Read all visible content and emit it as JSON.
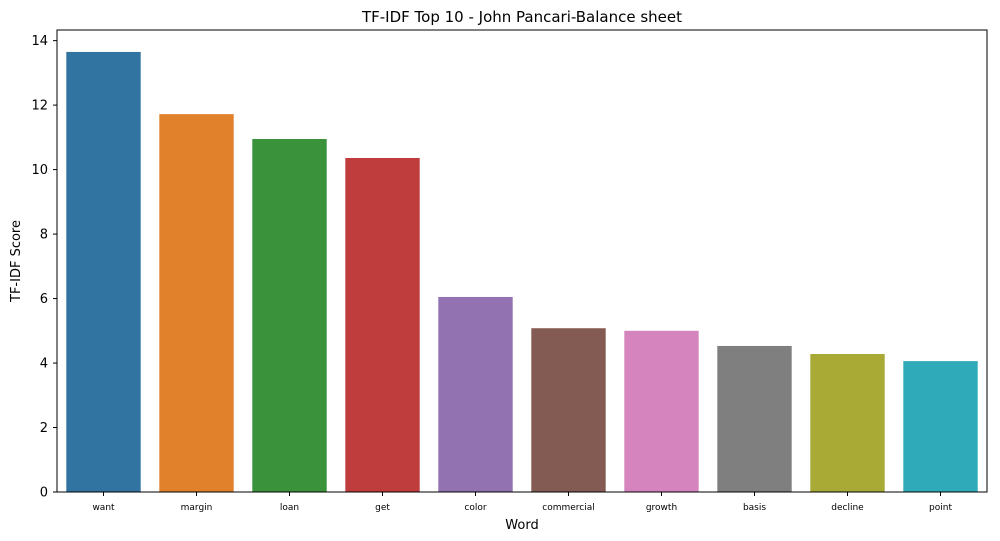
{
  "chart_data": {
    "type": "bar",
    "title": "TF-IDF Top 10 - John Pancari-Balance sheet",
    "xlabel": "Word",
    "ylabel": "TF-IDF Score",
    "categories": [
      "want",
      "margin",
      "loan",
      "get",
      "color",
      "commercial",
      "growth",
      "basis",
      "decline",
      "point"
    ],
    "values": [
      13.65,
      11.72,
      10.95,
      10.36,
      6.05,
      5.08,
      5.0,
      4.53,
      4.28,
      4.06
    ],
    "colors": [
      "#3274a1",
      "#e1812c",
      "#3a923a",
      "#c03d3e",
      "#9372b2",
      "#845b53",
      "#d684bd",
      "#7f7f7f",
      "#a9aa35",
      "#2eaab8"
    ],
    "ylim": [
      0,
      14.33
    ],
    "yticks": [
      0,
      2,
      4,
      6,
      8,
      10,
      12,
      14
    ],
    "grid": false,
    "legend": "none"
  }
}
